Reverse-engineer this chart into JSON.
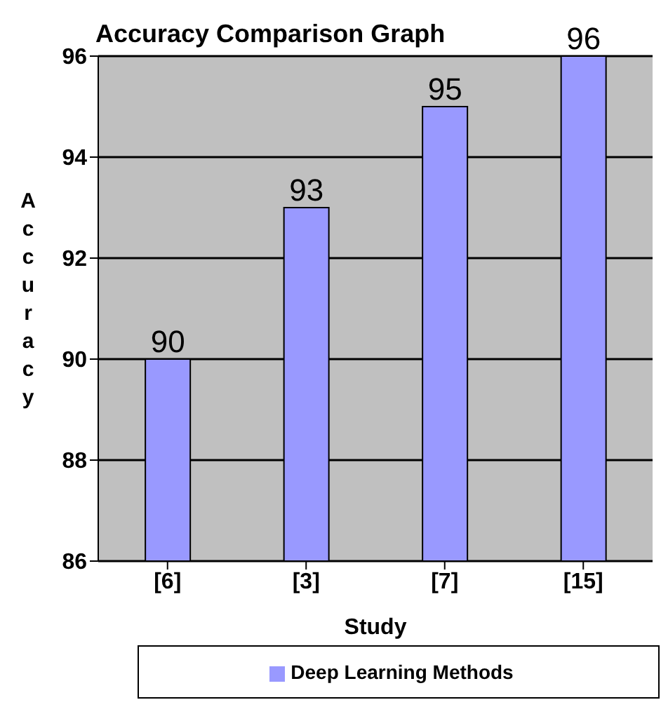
{
  "chart_data": {
    "type": "bar",
    "title": "Accuracy Comparison Graph",
    "xlabel": "Study",
    "ylabel": "Accuracy",
    "categories": [
      "[6]",
      "[3]",
      "[7]",
      "[15]"
    ],
    "series": [
      {
        "name": "Deep Learning Methods",
        "color": "#9999ff",
        "values": [
          90,
          93,
          95,
          96
        ]
      }
    ],
    "ylim": [
      86,
      96
    ],
    "yticks": [
      86,
      88,
      90,
      92,
      94,
      96
    ],
    "grid": "y",
    "legend": "bottom",
    "data_labels": true
  }
}
